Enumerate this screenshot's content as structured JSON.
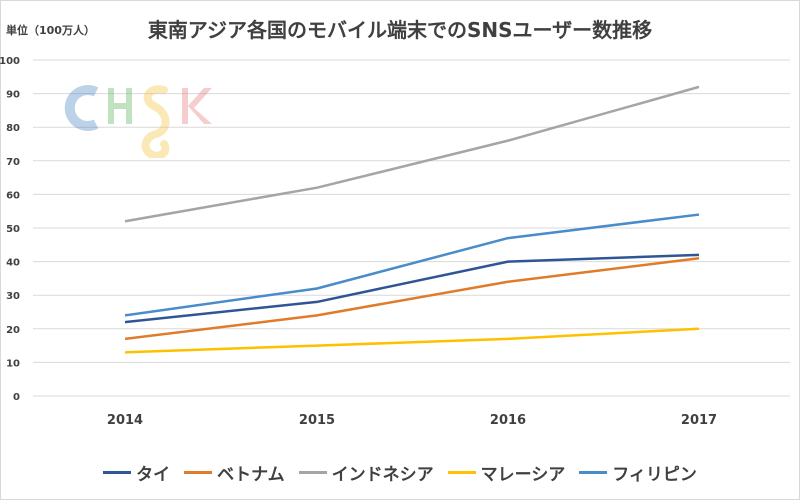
{
  "chart_data": {
    "type": "line",
    "title": "東南アジア各国のモバイル端末でのSNSユーザー数推移",
    "unit_label": "単位（100万人）",
    "categories": [
      "2014",
      "2015",
      "2016",
      "2017"
    ],
    "ylim": [
      0,
      100
    ],
    "yticks": [
      0,
      10,
      20,
      30,
      40,
      50,
      60,
      70,
      80,
      90,
      100
    ],
    "grid": true,
    "legend_position": "bottom",
    "series": [
      {
        "name": "タイ",
        "color": "#2f5597",
        "values": [
          22,
          28,
          40,
          42
        ]
      },
      {
        "name": "ベトナム",
        "color": "#e07b2a",
        "values": [
          17,
          24,
          34,
          41
        ]
      },
      {
        "name": "インドネシア",
        "color": "#a5a5a5",
        "values": [
          52,
          62,
          76,
          92
        ]
      },
      {
        "name": "マレーシア",
        "color": "#ffc000",
        "values": [
          13,
          15,
          17,
          20
        ]
      },
      {
        "name": "フィリピン",
        "color": "#4a8bc9",
        "values": [
          24,
          32,
          47,
          54
        ]
      }
    ]
  },
  "watermark": {
    "text": "CHSK",
    "colors": [
      "#3f7fc1",
      "#4caf50",
      "#f2c12e",
      "#e57373"
    ]
  }
}
